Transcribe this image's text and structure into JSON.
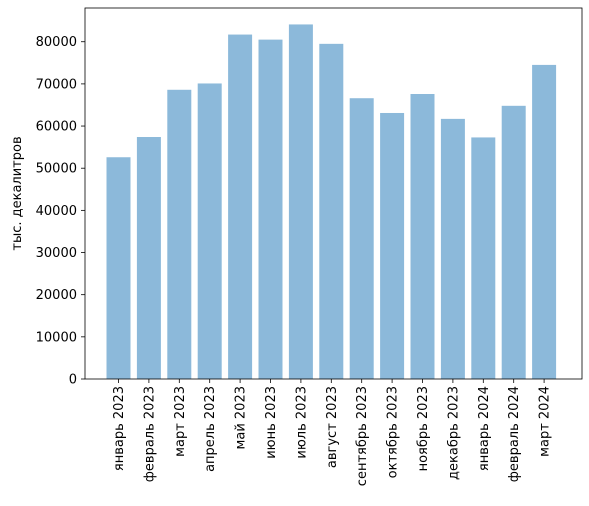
{
  "chart_data": {
    "type": "bar",
    "title": "",
    "xlabel": "",
    "ylabel": "тыс. декалитров",
    "categories": [
      "январь 2023",
      "февраль 2023",
      "март 2023",
      "апрель 2023",
      "май 2023",
      "июнь 2023",
      "июль 2023",
      "август 2023",
      "сентябрь 2023",
      "октябрь 2023",
      "ноябрь 2023",
      "декабрь 2023",
      "январь 2024",
      "февраль 2024",
      "март 2024"
    ],
    "values": [
      52600,
      57400,
      68600,
      70100,
      81700,
      80500,
      84100,
      79500,
      66600,
      63100,
      67600,
      61700,
      57300,
      64800,
      74500
    ],
    "ylim": [
      0,
      88000
    ],
    "yticks": [
      0,
      10000,
      20000,
      30000,
      40000,
      50000,
      60000,
      70000,
      80000
    ],
    "ytick_labels": [
      "0",
      "10000",
      "20000",
      "30000",
      "40000",
      "50000",
      "60000",
      "70000",
      "80000"
    ],
    "grid": false,
    "bar_color": "#8cb9da"
  }
}
